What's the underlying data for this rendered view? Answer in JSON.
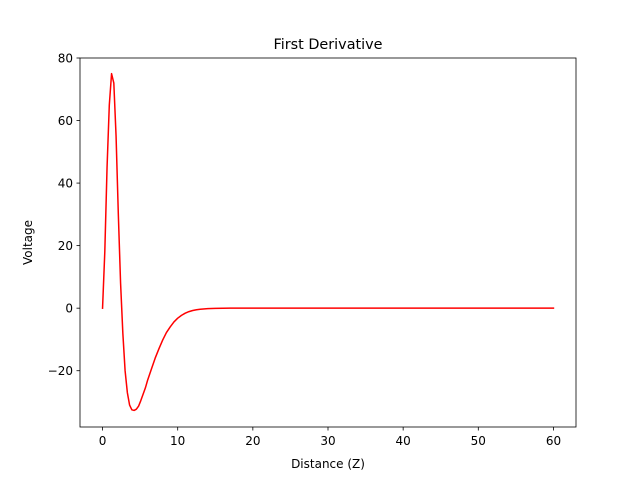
{
  "chart_data": {
    "type": "line",
    "title": "First Derivative",
    "xlabel": "Distance (Z)",
    "ylabel": "Voltage",
    "xlim": [
      -3,
      63
    ],
    "ylim": [
      -38,
      80
    ],
    "xticks": [
      0,
      10,
      20,
      30,
      40,
      50,
      60
    ],
    "yticks": [
      -20,
      0,
      20,
      40,
      60,
      80
    ],
    "ytick_labels": [
      "−20",
      "0",
      "20",
      "40",
      "60",
      "80"
    ],
    "grid": false,
    "series": [
      {
        "color": "#ff0000",
        "x": [
          0,
          0.3,
          0.6,
          0.9,
          1.2,
          1.5,
          1.8,
          2.1,
          2.4,
          2.7,
          3.0,
          3.3,
          3.6,
          3.9,
          4.2,
          4.5,
          4.8,
          5.1,
          5.4,
          5.7,
          6.0,
          6.5,
          7.0,
          7.5,
          8.0,
          8.5,
          9.0,
          9.5,
          10.0,
          10.5,
          11.0,
          11.5,
          12.0,
          12.5,
          13.0,
          14.0,
          15.0,
          16.0,
          17.0,
          18.0,
          20.0,
          25.0,
          30.0,
          40.0,
          50.0,
          60.0
        ],
        "y": [
          0,
          18,
          45,
          65,
          75,
          72,
          55,
          30,
          8,
          -8,
          -20,
          -27,
          -31,
          -32.5,
          -32.7,
          -32.3,
          -31.3,
          -29.5,
          -27.5,
          -25.5,
          -23,
          -19.5,
          -16,
          -13,
          -10.2,
          -7.8,
          -6,
          -4.4,
          -3.2,
          -2.3,
          -1.6,
          -1.1,
          -0.75,
          -0.5,
          -0.35,
          -0.15,
          -0.06,
          -0.02,
          0,
          0,
          0,
          0,
          0,
          0,
          0,
          0
        ]
      }
    ]
  }
}
